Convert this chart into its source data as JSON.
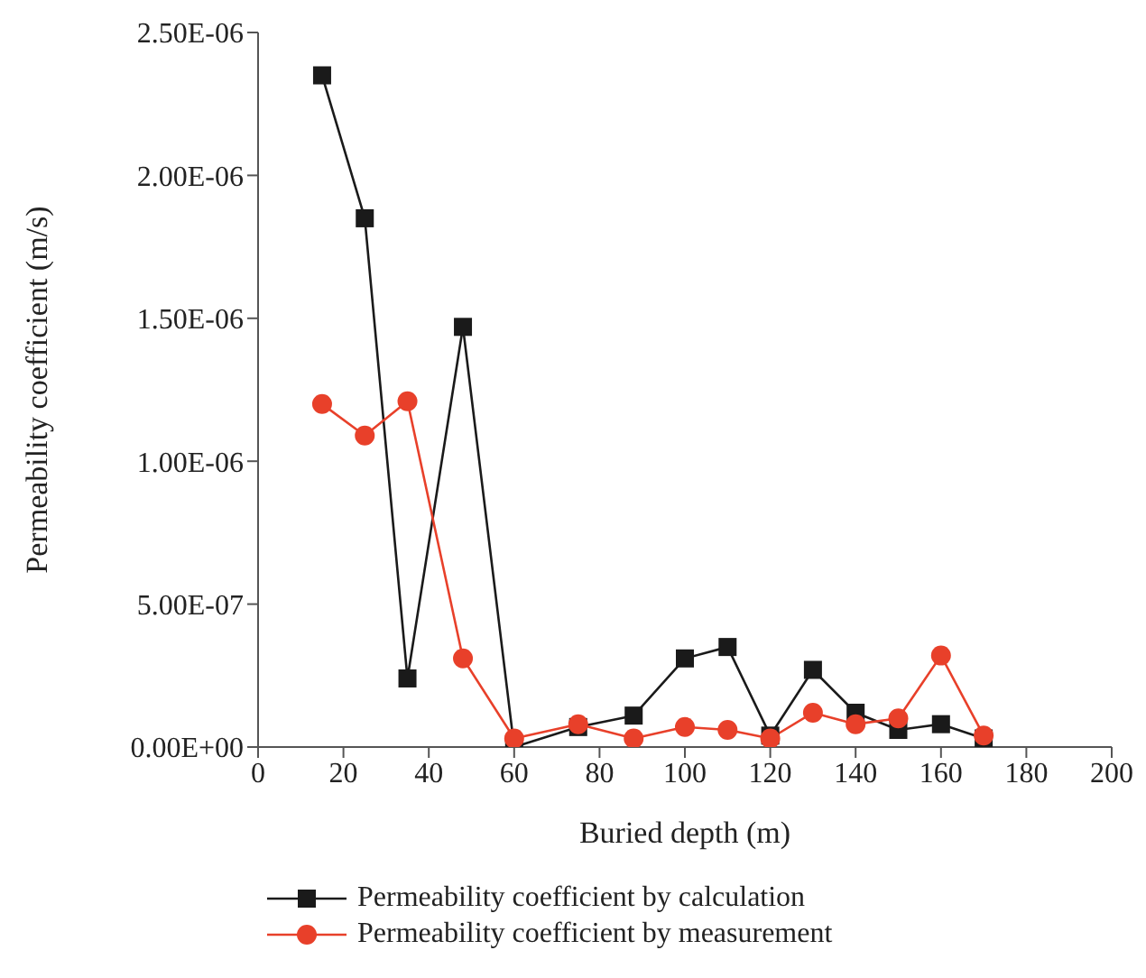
{
  "chart_data": {
    "type": "line",
    "xlabel": "Buried depth (m)",
    "ylabel": "Permeability coefficient (m/s)",
    "x": [
      15,
      25,
      35,
      48,
      60,
      75,
      88,
      100,
      110,
      120,
      130,
      140,
      150,
      160,
      170
    ],
    "series": [
      {
        "name": "Permeability coefficient by calculation",
        "color": "#1a1a1a",
        "marker": "square",
        "values": [
          2.35e-06,
          1.85e-06,
          2.4e-07,
          1.47e-06,
          0,
          7e-08,
          1.1e-07,
          3.1e-07,
          3.5e-07,
          4e-08,
          2.7e-07,
          1.2e-07,
          6e-08,
          8e-08,
          3e-08
        ]
      },
      {
        "name": "Permeability coefficient by measurement",
        "color": "#e8402a",
        "marker": "circle",
        "values": [
          1.2e-06,
          1.09e-06,
          1.21e-06,
          3.1e-07,
          3e-08,
          8e-08,
          3e-08,
          7e-08,
          6e-08,
          3e-08,
          1.2e-07,
          8e-08,
          1e-07,
          3.2e-07,
          4e-08
        ]
      }
    ],
    "xlim": [
      0,
      200
    ],
    "xticks": [
      0,
      20,
      40,
      60,
      80,
      100,
      120,
      140,
      160,
      180,
      200
    ],
    "ylim": [
      0,
      2.5e-06
    ],
    "yticks": [
      {
        "value": 0,
        "label": "0.00E+00"
      },
      {
        "value": 5e-07,
        "label": "5.00E-07"
      },
      {
        "value": 1e-06,
        "label": "1.00E-06"
      },
      {
        "value": 1.5e-06,
        "label": "1.50E-06"
      },
      {
        "value": 2e-06,
        "label": "2.00E-06"
      },
      {
        "value": 2.5e-06,
        "label": "2.50E-06"
      }
    ],
    "grid": false,
    "legend": "bottom",
    "line_style": "solid"
  }
}
